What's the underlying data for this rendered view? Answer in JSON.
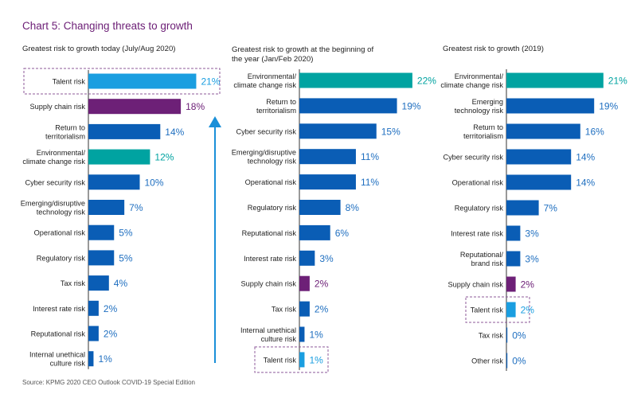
{
  "title": "Chart 5: Changing threats to growth",
  "source": "Source: KPMG 2020 CEO Outlook COVID-19 Special Edition",
  "colors": {
    "default": "#0a5db5",
    "talent": "#1a9ee0",
    "supply_chain": "#6d2077",
    "environmental": "#00a3a1",
    "highlight_box": "#8c5a9a",
    "arrow": "#1a8fd8"
  },
  "chart_data": [
    {
      "type": "bar",
      "orientation": "horizontal",
      "title": "Greatest risk to growth today (July/Aug 2020)",
      "categories": [
        "Talent risk",
        "Supply chain risk",
        "Return to territorialism",
        "Environmental/ climate change risk",
        "Cyber security risk",
        "Emerging/disruptive technology risk",
        "Operational risk",
        "Regulatory risk",
        "Tax risk",
        "Interest rate risk",
        "Reputational risk",
        "Internal unethical culture risk"
      ],
      "values": [
        21,
        18,
        14,
        12,
        10,
        7,
        5,
        5,
        4,
        2,
        2,
        1
      ],
      "labels": [
        "21%",
        "18%",
        "14%",
        "12%",
        "10%",
        "7%",
        "5%",
        "5%",
        "4%",
        "2%",
        "2%",
        "1%"
      ],
      "highlight": "Talent risk",
      "arrow": "up"
    },
    {
      "type": "bar",
      "orientation": "horizontal",
      "title": "Greatest risk to growth at the beginning of the year (Jan/Feb 2020)",
      "categories": [
        "Environmental/ climate change risk",
        "Return to territorialism",
        "Cyber security risk",
        "Emerging/disruptive technology risk",
        "Operational risk",
        "Regulatory risk",
        "Reputational risk",
        "Interest rate risk",
        "Supply chain risk",
        "Tax risk",
        "Internal unethical culture risk",
        "Talent risk"
      ],
      "values": [
        22,
        19,
        15,
        11,
        11,
        8,
        6,
        3,
        2,
        2,
        1,
        1
      ],
      "labels": [
        "22%",
        "19%",
        "15%",
        "11%",
        "11%",
        "8%",
        "6%",
        "3%",
        "2%",
        "2%",
        "1%",
        "1%"
      ],
      "highlight": "Talent risk"
    },
    {
      "type": "bar",
      "orientation": "horizontal",
      "title": "Greatest risk to growth (2019)",
      "categories": [
        "Environmental/ climate change risk",
        "Emerging technology risk",
        "Return to territorialism",
        "Cyber security risk",
        "Operational risk",
        "Regulatory risk",
        "Interest rate risk",
        "Reputational/ brand risk",
        "Supply chain risk",
        "Talent risk",
        "Tax risk",
        "Other risk"
      ],
      "values": [
        21,
        19,
        16,
        14,
        14,
        7,
        3,
        3,
        2,
        2,
        0,
        0
      ],
      "labels": [
        "21%",
        "19%",
        "16%",
        "14%",
        "14%",
        "7%",
        "3%",
        "3%",
        "2%",
        "2%",
        "0%",
        "0%"
      ],
      "highlight": "Talent risk"
    }
  ]
}
